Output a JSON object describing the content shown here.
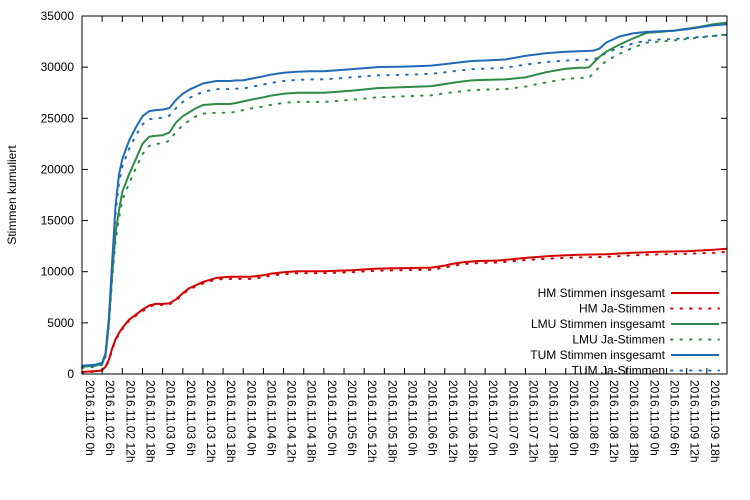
{
  "chart_data": {
    "type": "line",
    "title": "",
    "xlabel": "",
    "ylabel": "Stimmen kumuliert",
    "ylim": [
      0,
      35000
    ],
    "yticks": [
      0,
      5000,
      10000,
      15000,
      20000,
      25000,
      30000,
      35000
    ],
    "x_unit": "hours since 2016.11.02 0h",
    "xlim": [
      0,
      192
    ],
    "xticks": [
      {
        "x": 0,
        "label": "2016.11.02 0h"
      },
      {
        "x": 6,
        "label": "2016.11.02 6h"
      },
      {
        "x": 12,
        "label": "2016.11.02 12h"
      },
      {
        "x": 18,
        "label": "2016.11.02 18h"
      },
      {
        "x": 24,
        "label": "2016.11.03 0h"
      },
      {
        "x": 30,
        "label": "2016.11.03 6h"
      },
      {
        "x": 36,
        "label": "2016.11.03 12h"
      },
      {
        "x": 42,
        "label": "2016.11.03 18h"
      },
      {
        "x": 48,
        "label": "2016.11.04 0h"
      },
      {
        "x": 54,
        "label": "2016.11.04 6h"
      },
      {
        "x": 60,
        "label": "2016.11.04 12h"
      },
      {
        "x": 66,
        "label": "2016.11.04 18h"
      },
      {
        "x": 72,
        "label": "2016.11.05 0h"
      },
      {
        "x": 78,
        "label": "2016.11.05 6h"
      },
      {
        "x": 84,
        "label": "2016.11.05 12h"
      },
      {
        "x": 90,
        "label": "2016.11.05 18h"
      },
      {
        "x": 96,
        "label": "2016.11.06 0h"
      },
      {
        "x": 102,
        "label": "2016.11.06 6h"
      },
      {
        "x": 108,
        "label": "2016.11.06 12h"
      },
      {
        "x": 114,
        "label": "2016.11.06 18h"
      },
      {
        "x": 120,
        "label": "2016.11.07 0h"
      },
      {
        "x": 126,
        "label": "2016.11.07 6h"
      },
      {
        "x": 132,
        "label": "2016.11.07 12h"
      },
      {
        "x": 138,
        "label": "2016.11.07 18h"
      },
      {
        "x": 144,
        "label": "2016.11.08 0h"
      },
      {
        "x": 150,
        "label": "2016.11.08 6h"
      },
      {
        "x": 156,
        "label": "2016.11.08 12h"
      },
      {
        "x": 162,
        "label": "2016.11.08 18h"
      },
      {
        "x": 168,
        "label": "2016.11.09 0h"
      },
      {
        "x": 174,
        "label": "2016.11.09 6h"
      },
      {
        "x": 180,
        "label": "2016.11.09 12h"
      },
      {
        "x": 186,
        "label": "2016.11.09 18h"
      }
    ],
    "grid": false,
    "legend_position": "bottom-right",
    "series": [
      {
        "name": "HM Stimmen insgesamt",
        "color": "#d40000",
        "style": "solid",
        "x": [
          0,
          5,
          6,
          7,
          8,
          9,
          10,
          11,
          12,
          14,
          16,
          18,
          20,
          22,
          24,
          26,
          28,
          30,
          32,
          34,
          36,
          40,
          44,
          46,
          50,
          54,
          56,
          60,
          64,
          68,
          72,
          80,
          88,
          96,
          104,
          108,
          110,
          114,
          118,
          124,
          132,
          140,
          148,
          156,
          164,
          172,
          180,
          188,
          192
        ],
        "y": [
          200,
          300,
          400,
          700,
          1400,
          2500,
          3400,
          4000,
          4500,
          5300,
          5800,
          6300,
          6700,
          6850,
          6850,
          6900,
          7300,
          7900,
          8400,
          8700,
          9000,
          9400,
          9500,
          9500,
          9500,
          9650,
          9800,
          9950,
          10050,
          10050,
          10050,
          10150,
          10300,
          10350,
          10400,
          10600,
          10750,
          10950,
          11050,
          11100,
          11350,
          11550,
          11650,
          11700,
          11850,
          11950,
          12000,
          12150,
          12250
        ]
      },
      {
        "name": "HM Ja-Stimmen",
        "color": "#d40000",
        "style": "dotted",
        "x": [
          0,
          5,
          6,
          7,
          8,
          9,
          10,
          11,
          12,
          14,
          16,
          18,
          20,
          22,
          24,
          26,
          28,
          30,
          32,
          34,
          36,
          40,
          44,
          46,
          50,
          54,
          56,
          60,
          64,
          68,
          72,
          80,
          88,
          96,
          104,
          108,
          110,
          114,
          118,
          124,
          132,
          140,
          148,
          156,
          164,
          172,
          180,
          188,
          192
        ],
        "y": [
          150,
          250,
          350,
          650,
          1300,
          2400,
          3300,
          3900,
          4400,
          5200,
          5700,
          6150,
          6600,
          6750,
          6750,
          6800,
          7200,
          7800,
          8300,
          8550,
          8850,
          9250,
          9300,
          9300,
          9300,
          9450,
          9600,
          9750,
          9850,
          9850,
          9850,
          9950,
          10100,
          10150,
          10200,
          10400,
          10550,
          10750,
          10850,
          10900,
          11150,
          11300,
          11400,
          11450,
          11600,
          11700,
          11750,
          11850,
          11950
        ]
      },
      {
        "name": "LMU Stimmen insgesamt",
        "color": "#2e8b44",
        "style": "solid",
        "x": [
          0,
          4,
          6,
          7,
          8,
          9,
          10,
          11,
          12,
          14,
          16,
          18,
          20,
          22,
          24,
          26,
          28,
          30,
          32,
          34,
          36,
          40,
          44,
          46,
          50,
          54,
          56,
          60,
          64,
          68,
          72,
          80,
          88,
          96,
          104,
          108,
          112,
          116,
          120,
          126,
          132,
          138,
          144,
          148,
          150,
          151,
          154,
          156,
          160,
          164,
          168,
          172,
          176,
          180,
          184,
          188,
          192
        ],
        "y": [
          700,
          800,
          1000,
          1800,
          5000,
          9800,
          13800,
          16000,
          17800,
          19500,
          21000,
          22500,
          23200,
          23300,
          23350,
          23600,
          24600,
          25200,
          25600,
          26000,
          26300,
          26400,
          26400,
          26500,
          26800,
          27050,
          27200,
          27400,
          27500,
          27500,
          27500,
          27700,
          27950,
          28050,
          28150,
          28350,
          28550,
          28700,
          28750,
          28800,
          29000,
          29500,
          29850,
          29950,
          29950,
          30000,
          31000,
          31500,
          32200,
          32800,
          33350,
          33450,
          33550,
          33750,
          33950,
          34200,
          34350
        ]
      },
      {
        "name": "LMU Ja-Stimmen",
        "color": "#2e8b44",
        "style": "dotted",
        "x": [
          0,
          4,
          6,
          7,
          8,
          9,
          10,
          11,
          12,
          14,
          16,
          18,
          20,
          22,
          24,
          26,
          28,
          30,
          32,
          34,
          36,
          40,
          44,
          46,
          50,
          54,
          56,
          60,
          64,
          68,
          72,
          80,
          88,
          96,
          104,
          108,
          112,
          116,
          120,
          126,
          132,
          138,
          144,
          148,
          150,
          151,
          154,
          156,
          160,
          164,
          168,
          172,
          176,
          180,
          184,
          188,
          192
        ],
        "y": [
          600,
          700,
          900,
          1650,
          4700,
          9300,
          13000,
          15200,
          17000,
          18600,
          20100,
          21500,
          22300,
          22500,
          22550,
          22800,
          23700,
          24300,
          24800,
          25200,
          25450,
          25550,
          25550,
          25650,
          25950,
          26150,
          26300,
          26500,
          26600,
          26600,
          26600,
          26800,
          27050,
          27150,
          27250,
          27450,
          27600,
          27750,
          27800,
          27850,
          28100,
          28500,
          28850,
          28950,
          28950,
          29000,
          30000,
          30600,
          31300,
          31900,
          32400,
          32500,
          32600,
          32750,
          32900,
          33050,
          33200
        ]
      },
      {
        "name": "TUM Stimmen insgesamt",
        "color": "#1f6bb5",
        "style": "solid",
        "x": [
          0,
          4,
          6,
          7,
          8,
          9,
          10,
          11,
          12,
          14,
          16,
          18,
          20,
          22,
          24,
          26,
          28,
          30,
          32,
          34,
          36,
          40,
          44,
          46,
          48,
          50,
          54,
          56,
          60,
          64,
          68,
          72,
          80,
          88,
          96,
          104,
          108,
          112,
          116,
          120,
          126,
          132,
          138,
          144,
          148,
          152,
          154,
          156,
          160,
          164,
          168,
          172,
          176,
          180,
          184,
          188,
          192
        ],
        "y": [
          800,
          900,
          1100,
          2000,
          5500,
          11000,
          16500,
          19500,
          21000,
          22800,
          24100,
          25200,
          25700,
          25800,
          25850,
          26000,
          26800,
          27400,
          27800,
          28100,
          28400,
          28650,
          28650,
          28700,
          28700,
          28850,
          29100,
          29250,
          29450,
          29550,
          29600,
          29600,
          29800,
          30000,
          30050,
          30150,
          30300,
          30450,
          30600,
          30650,
          30750,
          31100,
          31350,
          31500,
          31550,
          31600,
          31800,
          32400,
          33000,
          33300,
          33450,
          33500,
          33550,
          33700,
          33900,
          34100,
          34200
        ]
      },
      {
        "name": "TUM Ja-Stimmen",
        "color": "#1f6bb5",
        "style": "dotted",
        "x": [
          0,
          4,
          6,
          7,
          8,
          9,
          10,
          11,
          12,
          14,
          16,
          18,
          20,
          22,
          24,
          26,
          28,
          30,
          32,
          34,
          36,
          40,
          44,
          46,
          48,
          50,
          54,
          56,
          60,
          64,
          68,
          72,
          80,
          88,
          96,
          104,
          108,
          112,
          116,
          120,
          126,
          132,
          138,
          144,
          148,
          152,
          154,
          156,
          160,
          164,
          168,
          172,
          176,
          180,
          184,
          188,
          192
        ],
        "y": [
          700,
          800,
          1000,
          1900,
          5200,
          10500,
          15800,
          18700,
          20300,
          22000,
          23300,
          24400,
          24900,
          25000,
          25050,
          25250,
          26000,
          26600,
          27000,
          27300,
          27600,
          27850,
          27850,
          27900,
          27900,
          28050,
          28300,
          28450,
          28650,
          28750,
          28800,
          28800,
          29000,
          29200,
          29250,
          29350,
          29500,
          29650,
          29800,
          29850,
          29950,
          30250,
          30500,
          30650,
          30700,
          30750,
          30950,
          31400,
          31900,
          32300,
          32600,
          32700,
          32750,
          32850,
          32950,
          33050,
          33150
        ]
      }
    ]
  }
}
